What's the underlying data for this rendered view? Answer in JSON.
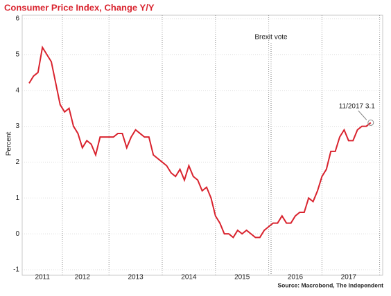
{
  "chart_data": {
    "type": "line",
    "title": "Consumer Price Index, Change Y/Y",
    "y_label": "Percent",
    "source": "Source: Macrobond, The Independent",
    "annotations": [
      "Brexit vote",
      "11/2017 3.1"
    ],
    "categories": [
      null,
      null,
      null,
      "2011",
      null,
      null,
      null,
      null,
      null,
      null,
      null,
      null,
      "2012",
      null,
      null,
      null,
      null,
      null,
      null,
      null,
      null,
      null,
      null,
      null,
      "2013",
      null,
      null,
      null,
      null,
      null,
      null,
      null,
      null,
      null,
      null,
      null,
      "2014",
      null,
      null,
      null,
      null,
      null,
      null,
      null,
      null,
      null,
      null,
      null,
      "2015",
      null,
      null,
      null,
      null,
      null,
      null,
      null,
      null,
      null,
      null,
      null,
      "2016",
      null,
      null,
      null,
      null,
      null,
      null,
      null,
      null,
      null,
      null,
      null,
      "2017",
      null,
      null,
      null,
      null,
      null
    ],
    "series": [
      {
        "name": "CPI",
        "color": "#d9232e",
        "values": [
          4.2,
          4.4,
          4.5,
          5.2,
          5.0,
          4.8,
          4.2,
          3.6,
          3.4,
          3.5,
          3.0,
          2.8,
          2.4,
          2.6,
          2.5,
          2.2,
          2.7,
          2.7,
          2.7,
          2.7,
          2.8,
          2.8,
          2.4,
          2.7,
          2.9,
          2.8,
          2.7,
          2.7,
          2.2,
          2.1,
          2.0,
          1.9,
          1.7,
          1.6,
          1.8,
          1.5,
          1.9,
          1.6,
          1.5,
          1.2,
          1.3,
          1.0,
          0.5,
          0.3,
          0.0,
          0.0,
          -0.1,
          0.1,
          0.0,
          0.1,
          0.0,
          -0.1,
          -0.1,
          0.1,
          0.2,
          0.3,
          0.3,
          0.5,
          0.3,
          0.3,
          0.5,
          0.6,
          0.6,
          1.0,
          0.9,
          1.2,
          1.6,
          1.8,
          2.3,
          2.3,
          2.7,
          2.9,
          2.6,
          2.6,
          2.9,
          3.0,
          3.0,
          3.1
        ]
      }
    ],
    "ylim": [
      -1,
      6
    ],
    "yticks": [
      -1,
      0,
      1,
      2,
      3,
      4,
      5,
      6
    ],
    "grid": true
  }
}
